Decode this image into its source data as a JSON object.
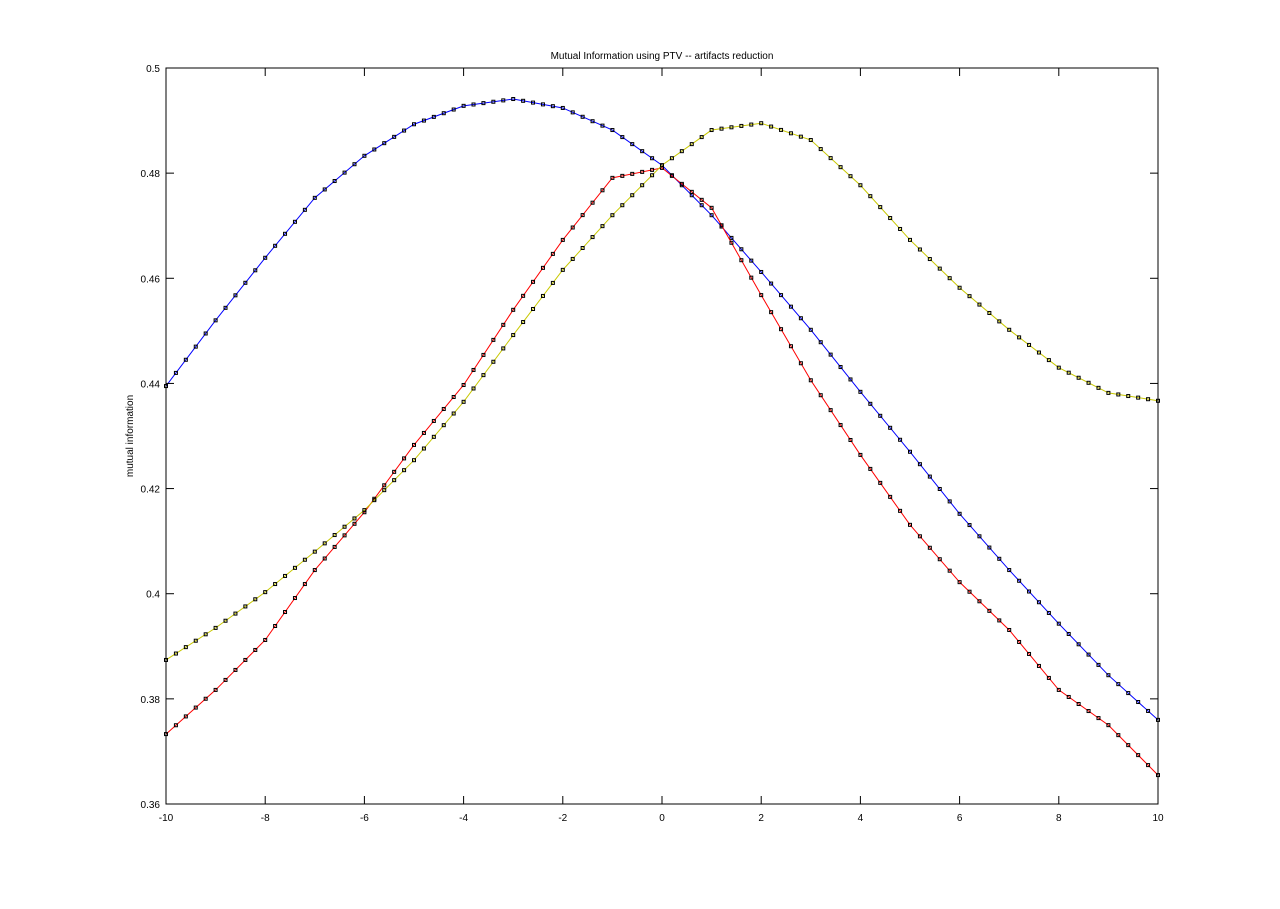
{
  "chart_data": {
    "type": "line",
    "title": "Mutual Information using PTV -- artifacts reduction",
    "xlabel": "",
    "ylabel": "mutual information",
    "xlim": [
      -10,
      10
    ],
    "ylim": [
      0.36,
      0.5
    ],
    "xticks": [
      -10,
      -8,
      -6,
      -4,
      -2,
      0,
      2,
      4,
      6,
      8,
      10
    ],
    "yticks": [
      0.36,
      0.38,
      0.4,
      0.42,
      0.44,
      0.46,
      0.48,
      0.5
    ],
    "grid": false,
    "marker": "square",
    "marker_color": "#000000",
    "marker_step": 0.2,
    "x": [
      -10,
      -9,
      -8,
      -7,
      -6,
      -5,
      -4,
      -3,
      -2,
      -1,
      0,
      1,
      2,
      3,
      4,
      5,
      6,
      7,
      8,
      9,
      10
    ],
    "series": [
      {
        "color": "#0000ff",
        "values": [
          0.4395,
          0.452,
          0.4639,
          0.4753,
          0.4833,
          0.4893,
          0.4928,
          0.4941,
          0.4924,
          0.4882,
          0.4815,
          0.472,
          0.4612,
          0.4502,
          0.4384,
          0.427,
          0.4152,
          0.4045,
          0.3943,
          0.3845,
          0.376
        ]
      },
      {
        "color": "#ff0000",
        "values": [
          0.3733,
          0.3817,
          0.3912,
          0.4045,
          0.4155,
          0.4283,
          0.4397,
          0.454,
          0.4673,
          0.4791,
          0.481,
          0.4734,
          0.4568,
          0.4406,
          0.4264,
          0.4131,
          0.4022,
          0.3931,
          0.3817,
          0.375,
          0.3655
        ]
      },
      {
        "color": "#c8c800",
        "values": [
          0.3874,
          0.3935,
          0.4003,
          0.408,
          0.4159,
          0.4254,
          0.4365,
          0.4492,
          0.4616,
          0.472,
          0.4815,
          0.4882,
          0.4895,
          0.4863,
          0.4777,
          0.4673,
          0.4582,
          0.4502,
          0.443,
          0.4382,
          0.4367
        ]
      }
    ]
  }
}
